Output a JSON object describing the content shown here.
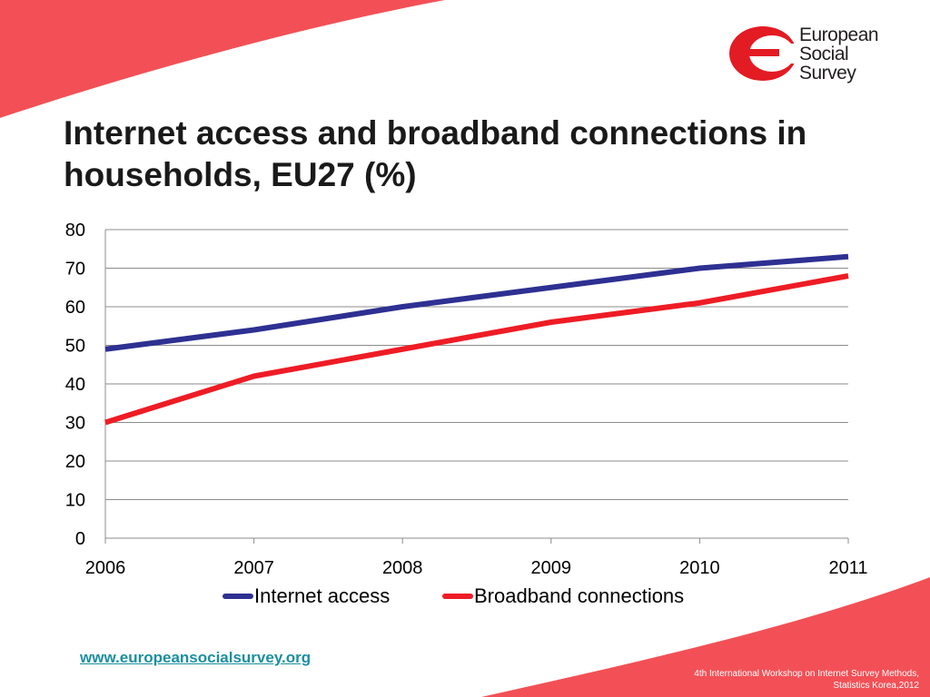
{
  "slide": {
    "title": "Internet access and broadband connections in households, EU27 (%)",
    "logo_lines": [
      "European",
      "Social",
      "Survey"
    ],
    "url": "www.europeansocialsurvey.org",
    "footer_line1": "4th International Workshop on Internet Survey Methods,",
    "footer_line2": "Statistics Korea,2012",
    "colors": {
      "accent": "#f25056",
      "brand_red": "#e31b23",
      "url": "#1b8fa0"
    }
  },
  "chart_data": {
    "type": "line",
    "title": "",
    "xlabel": "",
    "ylabel": "",
    "x": [
      "2006",
      "2007",
      "2008",
      "2009",
      "2010",
      "2011"
    ],
    "yticks": [
      "0",
      "10",
      "20",
      "30",
      "40",
      "50",
      "60",
      "70",
      "80"
    ],
    "ylim": [
      0,
      80
    ],
    "grid": true,
    "legend": "bottom",
    "series": [
      {
        "name": "Internet access",
        "values": [
          49,
          54,
          60,
          65,
          70,
          73
        ],
        "color": "#2e3092"
      },
      {
        "name": "Broadband connections",
        "values": [
          30,
          42,
          49,
          56,
          61,
          68
        ],
        "color": "#ee1c25"
      }
    ]
  }
}
